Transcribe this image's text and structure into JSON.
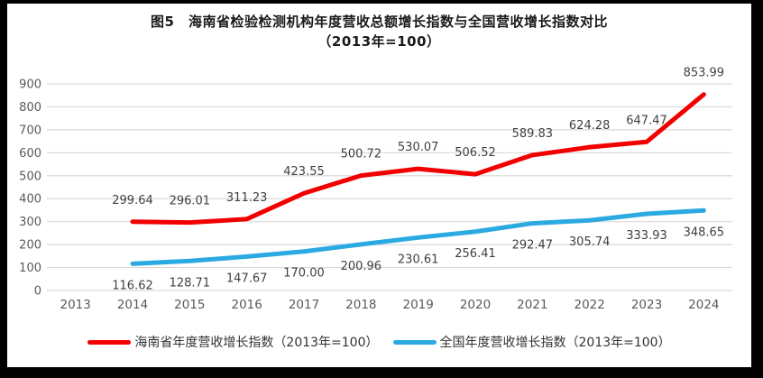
{
  "title": {
    "line1": "图5　海南省检验检测机构年度营收总额增长指数与全国营收增长指数对比",
    "line2": "（2013年=100）"
  },
  "chart_data": {
    "type": "line",
    "categories": [
      "2013",
      "2014",
      "2015",
      "2016",
      "2017",
      "2018",
      "2019",
      "2020",
      "2021",
      "2022",
      "2023",
      "2024"
    ],
    "series": [
      {
        "name": "海南省年度营收增长指数（2013年=100）",
        "color": "#f20000",
        "label_position": "above",
        "values": [
          null,
          299.64,
          296.01,
          311.23,
          423.55,
          500.72,
          530.07,
          506.52,
          589.83,
          624.28,
          647.47,
          853.99
        ]
      },
      {
        "name": "全国年度营收增长指数（2013年=100）",
        "color": "#2baae1",
        "label_position": "below",
        "values": [
          null,
          116.62,
          128.71,
          147.67,
          170.0,
          200.96,
          230.61,
          256.41,
          292.47,
          305.74,
          333.93,
          348.65
        ]
      }
    ],
    "y_axis": {
      "min": 0,
      "max": 900,
      "step": 100,
      "ticks": [
        "0",
        "100",
        "200",
        "300",
        "400",
        "500",
        "600",
        "700",
        "800",
        "900"
      ]
    },
    "x_axis_label": "",
    "ylabel": "",
    "grid": true,
    "legend_position": "bottom",
    "style": {
      "gridline_color": "#d9d9d9",
      "axis_text_color": "#595959",
      "label_text_color": "#3f3f3f",
      "plot_background": "#ffffff",
      "frame_color": "#000000"
    }
  },
  "legend": {
    "items": [
      {
        "label": "海南省年度营收增长指数（2013年=100）",
        "color": "#f20000"
      },
      {
        "label": "全国年度营收增长指数（2013年=100）",
        "color": "#2baae1"
      }
    ]
  }
}
